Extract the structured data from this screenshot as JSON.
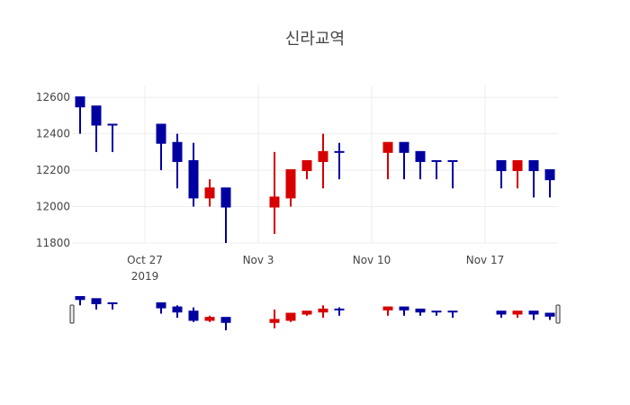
{
  "chart_data": {
    "type": "candlestick",
    "title": "신라교역",
    "xlabel": "",
    "ylabel": "",
    "ylim": [
      11800,
      12665
    ],
    "xlim": [
      "2019-10-22T12:00",
      "2019-11-21T12:00"
    ],
    "grid": true,
    "y_ticks": [
      11800,
      12000,
      12200,
      12400,
      12600
    ],
    "y_tick_labels": [
      "11800",
      "12000",
      "12200",
      "12400",
      "12600"
    ],
    "x_ticks": [
      "2019-10-27",
      "2019-11-03",
      "2019-11-10",
      "2019-11-17"
    ],
    "x_tick_labels": [
      "Oct 27",
      "Nov 3",
      "Nov 10",
      "Nov 17"
    ],
    "x_tick_year_label": "2019",
    "increasing_color": "#d60000",
    "decreasing_color": "#0000a0",
    "rangeslider": true,
    "candles": [
      {
        "date": "2019-10-23",
        "open": 12600,
        "high": 12600,
        "low": 12400,
        "close": 12550
      },
      {
        "date": "2019-10-24",
        "open": 12550,
        "high": 12550,
        "low": 12300,
        "close": 12450
      },
      {
        "date": "2019-10-25",
        "open": 12450,
        "high": 12450,
        "low": 12300,
        "close": 12450
      },
      {
        "date": "2019-10-28",
        "open": 12450,
        "high": 12450,
        "low": 12200,
        "close": 12350
      },
      {
        "date": "2019-10-29",
        "open": 12350,
        "high": 12400,
        "low": 12100,
        "close": 12250
      },
      {
        "date": "2019-10-30",
        "open": 12250,
        "high": 12350,
        "low": 12000,
        "close": 12050
      },
      {
        "date": "2019-10-31",
        "open": 12050,
        "high": 12150,
        "low": 12000,
        "close": 12100
      },
      {
        "date": "2019-11-01",
        "open": 12100,
        "high": 12100,
        "low": 11800,
        "close": 12000
      },
      {
        "date": "2019-11-04",
        "open": 12000,
        "high": 12300,
        "low": 11850,
        "close": 12050
      },
      {
        "date": "2019-11-05",
        "open": 12050,
        "high": 12200,
        "low": 12000,
        "close": 12200
      },
      {
        "date": "2019-11-06",
        "open": 12200,
        "high": 12250,
        "low": 12150,
        "close": 12250
      },
      {
        "date": "2019-11-07",
        "open": 12250,
        "high": 12400,
        "low": 12100,
        "close": 12300
      },
      {
        "date": "2019-11-08",
        "open": 12300,
        "high": 12350,
        "low": 12150,
        "close": 12300
      },
      {
        "date": "2019-11-11",
        "open": 12300,
        "high": 12350,
        "low": 12150,
        "close": 12350
      },
      {
        "date": "2019-11-12",
        "open": 12350,
        "high": 12350,
        "low": 12150,
        "close": 12300
      },
      {
        "date": "2019-11-13",
        "open": 12300,
        "high": 12300,
        "low": 12150,
        "close": 12250
      },
      {
        "date": "2019-11-14",
        "open": 12250,
        "high": 12250,
        "low": 12150,
        "close": 12250
      },
      {
        "date": "2019-11-15",
        "open": 12250,
        "high": 12250,
        "low": 12100,
        "close": 12250
      },
      {
        "date": "2019-11-18",
        "open": 12250,
        "high": 12250,
        "low": 12100,
        "close": 12200
      },
      {
        "date": "2019-11-19",
        "open": 12200,
        "high": 12250,
        "low": 12100,
        "close": 12250
      },
      {
        "date": "2019-11-20",
        "open": 12250,
        "high": 12250,
        "low": 12050,
        "close": 12200
      },
      {
        "date": "2019-11-21",
        "open": 12200,
        "high": 12200,
        "low": 12050,
        "close": 12150
      }
    ]
  }
}
